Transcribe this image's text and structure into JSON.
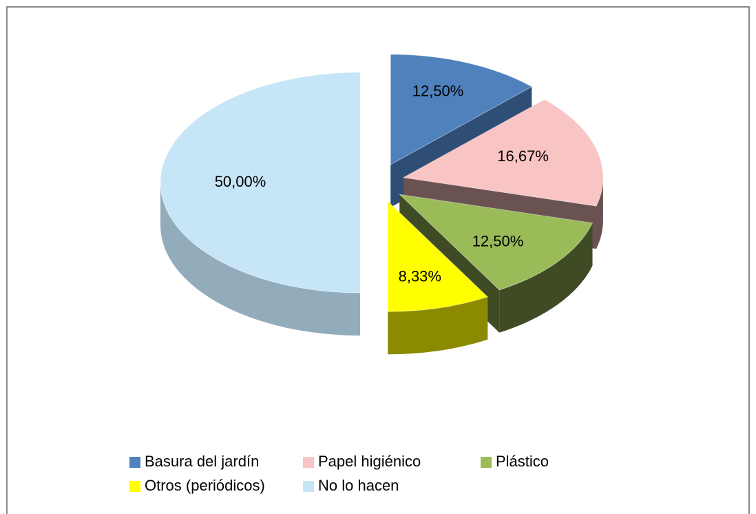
{
  "chart_data": {
    "type": "pie3d",
    "categories": [
      "Basura del jardín",
      "Papel higiénico",
      "Plástico",
      "Otros (periódicos)",
      "No lo hacen"
    ],
    "values": [
      12.5,
      16.67,
      12.5,
      8.33,
      50
    ],
    "value_labels": [
      "12,50%",
      "16,67%",
      "12,50%",
      "8,33%",
      "50,00%"
    ],
    "colors": [
      "#4f81bd",
      "#f9c4c4",
      "#9bbb59",
      "#ffff00",
      "#c6e6f8"
    ],
    "side_colors": [
      "#2f4e75",
      "#6a5252",
      "#3f4b24",
      "#8c8a00",
      "#93acbc"
    ],
    "legend": "bottom"
  }
}
